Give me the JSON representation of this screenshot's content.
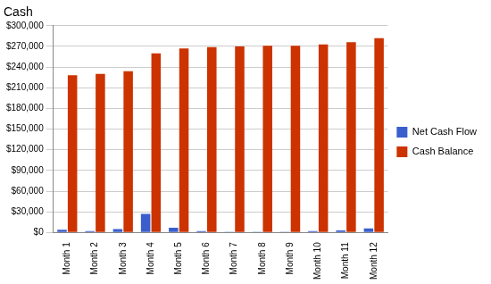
{
  "chart_data": {
    "type": "bar",
    "title": "Cash",
    "categories": [
      "Month 1",
      "Month 2",
      "Month 3",
      "Month 4",
      "Month 5",
      "Month 6",
      "Month 7",
      "Month 8",
      "Month 9",
      "Month 10",
      "Month 11",
      "Month 12"
    ],
    "series": [
      {
        "name": "Net Cash Flow",
        "color": "#3a5fcd",
        "values": [
          4000,
          2000,
          5000,
          27000,
          7000,
          2000,
          1000,
          1000,
          500,
          2000,
          3000,
          6000
        ]
      },
      {
        "name": "Cash Balance",
        "color": "#cc3300",
        "values": [
          228000,
          230000,
          234000,
          260000,
          267000,
          269000,
          270000,
          271000,
          271000,
          273000,
          276000,
          282000
        ]
      }
    ],
    "ylim": [
      0,
      300000
    ],
    "yticks": [
      {
        "value": 0,
        "label": "$0"
      },
      {
        "value": 30000,
        "label": "$30,000"
      },
      {
        "value": 60000,
        "label": "$60,000"
      },
      {
        "value": 90000,
        "label": "$90,000"
      },
      {
        "value": 120000,
        "label": "$120,000"
      },
      {
        "value": 150000,
        "label": "$150,000"
      },
      {
        "value": 180000,
        "label": "$180,000"
      },
      {
        "value": 210000,
        "label": "$210,000"
      },
      {
        "value": 240000,
        "label": "$240,000"
      },
      {
        "value": 270000,
        "label": "$270,000"
      },
      {
        "value": 300000,
        "label": "$300,000"
      }
    ],
    "grid": true,
    "legend": "right"
  }
}
